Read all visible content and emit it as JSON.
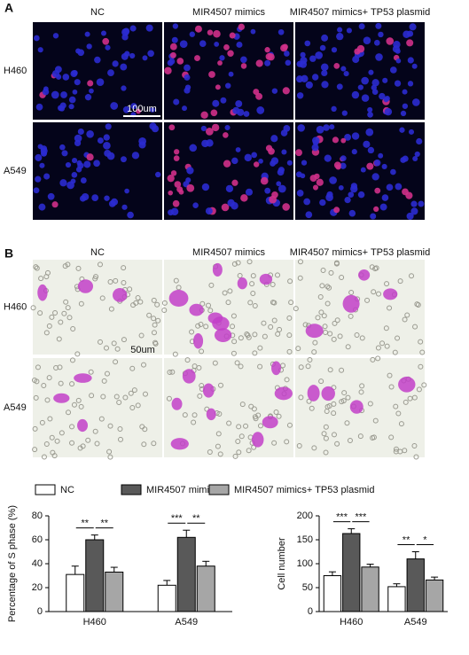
{
  "panel_a": {
    "label": "A",
    "columns": [
      "NC",
      "MIR4507 mimics",
      "MIR4507 mimics+ TP53 plasmid"
    ],
    "rows": [
      "H460",
      "A549"
    ],
    "scale_bar": "100um"
  },
  "panel_b": {
    "label": "B",
    "columns": [
      "NC",
      "MIR4507 mimics",
      "MIR4507 mimics+ TP53 plasmid"
    ],
    "rows": [
      "H460",
      "A549"
    ],
    "scale_bar": "50um"
  },
  "chart_data": [
    {
      "type": "bar",
      "ylabel": "Percentage of S phase (%)",
      "categories": [
        "H460",
        "A549"
      ],
      "series": [
        {
          "name": "NC",
          "color": "#ffffff",
          "values": [
            31,
            22
          ],
          "errors": [
            7,
            4
          ]
        },
        {
          "name": "MIR4507 mimics",
          "color": "#595959",
          "values": [
            60,
            62
          ],
          "errors": [
            4,
            6
          ]
        },
        {
          "name": "MIR4507 mimics+ TP53 plasmid",
          "color": "#a6a6a6",
          "values": [
            33,
            38
          ],
          "errors": [
            4,
            4
          ]
        }
      ],
      "ylim": [
        0,
        80
      ],
      "yticks": [
        0,
        20,
        40,
        60,
        80
      ],
      "significance": [
        [
          "**",
          "**"
        ],
        [
          "***",
          "**"
        ]
      ]
    },
    {
      "type": "bar",
      "ylabel": "Cell number",
      "categories": [
        "H460",
        "A549"
      ],
      "series": [
        {
          "color": "#ffffff",
          "values": [
            75,
            52
          ],
          "errors": [
            8,
            6
          ]
        },
        {
          "color": "#595959",
          "values": [
            163,
            110
          ],
          "errors": [
            10,
            15
          ]
        },
        {
          "color": "#a6a6a6",
          "values": [
            93,
            66
          ],
          "errors": [
            6,
            6
          ]
        }
      ],
      "ylim": [
        0,
        200
      ],
      "yticks": [
        0,
        50,
        100,
        150,
        200
      ],
      "significance": [
        [
          "***",
          "***"
        ],
        [
          "**",
          "*"
        ]
      ]
    }
  ]
}
